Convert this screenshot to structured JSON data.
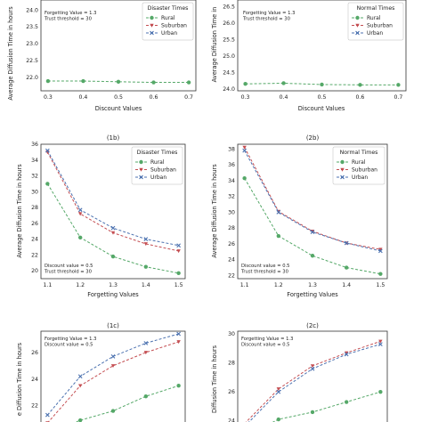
{
  "colors": {
    "rural": "#55a868",
    "suburban": "#c44e52",
    "urban": "#4c72b0"
  },
  "chart_data": [
    {
      "id": "1a",
      "type": "line",
      "title": "",
      "xlabel": "Discount Values",
      "ylabel": "Average Diffusion Time in hours",
      "x": [
        0.3,
        0.4,
        0.5,
        0.6,
        0.7
      ],
      "x_ticks": [
        "0.3",
        "0.4",
        "0.5",
        "0.6",
        "0.7"
      ],
      "xlim": [
        0.28,
        0.72
      ],
      "ylim": [
        21.6,
        24.3
      ],
      "y_ticks": [
        "22.0",
        "22.5",
        "23.0",
        "23.5",
        "24.0"
      ],
      "y_tick_values": [
        22.0,
        22.5,
        23.0,
        23.5,
        24.0
      ],
      "annotation": [
        "Forgetting Value = 1.3",
        "Trust threshold = 30"
      ],
      "legend": {
        "title": "Disaster Times",
        "position": "top-right",
        "entries": [
          "Rural",
          "Suburban",
          "Urban"
        ]
      },
      "series": [
        {
          "name": "Rural",
          "marker": "circle",
          "values": [
            21.89,
            21.89,
            21.87,
            21.85,
            21.85
          ]
        }
      ]
    },
    {
      "id": "2a",
      "type": "line",
      "title": "",
      "xlabel": "Discount Values",
      "ylabel": "Average Diffusion Time in",
      "x": [
        0.3,
        0.4,
        0.5,
        0.6,
        0.7
      ],
      "x_ticks": [
        "0.3",
        "0.4",
        "0.5",
        "0.6",
        "0.7"
      ],
      "xlim": [
        0.28,
        0.72
      ],
      "ylim": [
        23.95,
        26.7
      ],
      "y_ticks": [
        "24.0",
        "24.5",
        "25.0",
        "25.5",
        "26.0",
        "26.5"
      ],
      "y_tick_values": [
        24.0,
        24.5,
        25.0,
        25.5,
        26.0,
        26.5
      ],
      "annotation": [
        "Forgetting Value = 1.3",
        "Trust threshold = 30"
      ],
      "legend": {
        "title": "Normal Times",
        "position": "top-right",
        "entries": [
          "Rural",
          "Suburban",
          "Urban"
        ]
      },
      "series": [
        {
          "name": "Rural",
          "marker": "circle",
          "values": [
            24.16,
            24.18,
            24.14,
            24.13,
            24.13
          ]
        }
      ]
    },
    {
      "id": "1b",
      "type": "line",
      "title": "(1b)",
      "xlabel": "Forgetting Values",
      "ylabel": "Average Diffusion Time in hours",
      "x": [
        1.1,
        1.2,
        1.3,
        1.4,
        1.5
      ],
      "x_ticks": [
        "1.1",
        "1.2",
        "1.3",
        "1.4",
        "1.5"
      ],
      "xlim": [
        1.08,
        1.52
      ],
      "ylim": [
        19.0,
        36.0
      ],
      "y_ticks": [
        "20",
        "22",
        "24",
        "26",
        "28",
        "30",
        "32",
        "34",
        "36"
      ],
      "y_tick_values": [
        20,
        22,
        24,
        26,
        28,
        30,
        32,
        34,
        36
      ],
      "annotation": [
        "Discount value = 0.5",
        "Trust threshold = 30"
      ],
      "legend": {
        "title": "Disaster Times",
        "position": "top-right",
        "entries": [
          "Rural",
          "Suburban",
          "Urban"
        ]
      },
      "series": [
        {
          "name": "Rural",
          "marker": "circle",
          "values": [
            31.0,
            24.2,
            21.8,
            20.5,
            19.7
          ]
        },
        {
          "name": "Suburban",
          "marker": "triangle-down",
          "values": [
            35.0,
            27.2,
            24.8,
            23.4,
            22.5
          ]
        },
        {
          "name": "Urban",
          "marker": "x",
          "values": [
            35.2,
            27.7,
            25.4,
            24.0,
            23.2
          ]
        }
      ]
    },
    {
      "id": "2b",
      "type": "line",
      "title": "(2b)",
      "xlabel": "Forgetting Values",
      "ylabel": "Average Diffusion Time in hours",
      "x": [
        1.1,
        1.2,
        1.3,
        1.4,
        1.5
      ],
      "x_ticks": [
        "1.1",
        "1.2",
        "1.3",
        "1.4",
        "1.5"
      ],
      "xlim": [
        1.08,
        1.52
      ],
      "ylim": [
        21.6,
        38.6
      ],
      "y_ticks": [
        "22",
        "24",
        "26",
        "28",
        "30",
        "32",
        "34",
        "36",
        "38"
      ],
      "y_tick_values": [
        22,
        24,
        26,
        28,
        30,
        32,
        34,
        36,
        38
      ],
      "annotation": [
        "Discount value = 0.5",
        "Trust threshold = 30"
      ],
      "legend": {
        "title": "Normal Times",
        "position": "top-right",
        "entries": [
          "Rural",
          "Suburban",
          "Urban"
        ]
      },
      "series": [
        {
          "name": "Rural",
          "marker": "circle",
          "values": [
            34.3,
            27.0,
            24.5,
            23.0,
            22.2
          ]
        },
        {
          "name": "Suburban",
          "marker": "triangle-down",
          "values": [
            38.2,
            30.1,
            27.6,
            26.1,
            25.3
          ]
        },
        {
          "name": "Urban",
          "marker": "x",
          "values": [
            37.8,
            30.0,
            27.5,
            26.1,
            25.1
          ]
        }
      ]
    },
    {
      "id": "1c",
      "type": "line",
      "title": "(1c)",
      "xlabel": "",
      "ylabel": "e Diffusion Time in hours",
      "x": [
        1,
        2,
        3,
        4,
        5
      ],
      "x_ticks": [],
      "xlim": [
        0.8,
        5.2
      ],
      "ylim": [
        20.1,
        27.6
      ],
      "y_ticks": [
        "22",
        "24",
        "26"
      ],
      "y_tick_values": [
        22,
        24,
        26
      ],
      "annotation": [
        "Forgetting Value = 1.3",
        "Discount value = 0.5"
      ],
      "legend": null,
      "series": [
        {
          "name": "Rural",
          "marker": "circle",
          "values": [
            19.9,
            20.9,
            21.6,
            22.7,
            23.5
          ]
        },
        {
          "name": "Suburban",
          "marker": "triangle-down",
          "values": [
            20.7,
            23.5,
            25.0,
            26.0,
            26.8
          ]
        },
        {
          "name": "Urban",
          "marker": "x",
          "values": [
            21.3,
            24.2,
            25.7,
            26.7,
            27.4
          ]
        }
      ]
    },
    {
      "id": "2c",
      "type": "line",
      "title": "(2c)",
      "xlabel": "",
      "ylabel": "Diffusion Time in hours",
      "x": [
        1,
        2,
        3,
        4,
        5
      ],
      "x_ticks": [],
      "xlim": [
        0.8,
        5.2
      ],
      "ylim": [
        23.3,
        30.2
      ],
      "y_ticks": [
        "24",
        "26",
        "28",
        "30"
      ],
      "y_tick_values": [
        24,
        26,
        28,
        30
      ],
      "annotation": [
        "Forgetting Value = 1.3",
        "Discount value = 0.5"
      ],
      "legend": null,
      "series": [
        {
          "name": "Rural",
          "marker": "circle",
          "values": [
            22.9,
            24.1,
            24.6,
            25.3,
            26.0
          ]
        },
        {
          "name": "Suburban",
          "marker": "triangle-down",
          "values": [
            23.8,
            26.2,
            27.8,
            28.7,
            29.5
          ]
        },
        {
          "name": "Urban",
          "marker": "x",
          "values": [
            23.6,
            26.0,
            27.6,
            28.6,
            29.3
          ]
        }
      ]
    }
  ]
}
